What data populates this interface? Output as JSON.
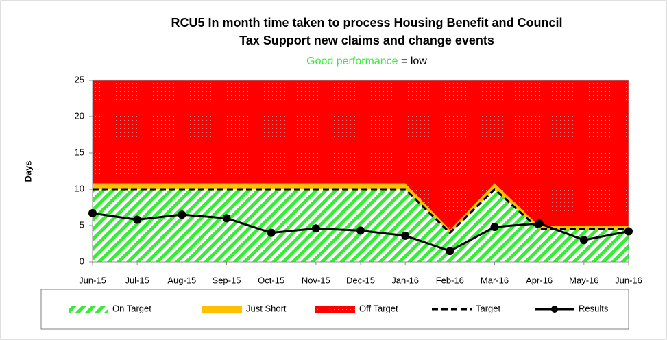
{
  "chart_data": {
    "type": "combo",
    "title": [
      "RCU5 In month time taken to process Housing Benefit and Council",
      "Tax Support new claims and change events"
    ],
    "subtitle": {
      "highlight": "Good performance",
      "rest": "= low"
    },
    "y_label": "Days",
    "categories": [
      "Jun-15",
      "Jul-15",
      "Aug-15",
      "Sep-15",
      "Oct-15",
      "Nov-15",
      "Dec-15",
      "Jan-16",
      "Feb-16",
      "Mar-16",
      "Apr-16",
      "May-16",
      "Jun-16"
    ],
    "ylim": [
      0,
      25
    ],
    "yticks": [
      0,
      5,
      10,
      15,
      20,
      25
    ],
    "series": [
      {
        "name": "On Target",
        "style": "hatched-area",
        "color": "#33ee33",
        "values": [
          10,
          10,
          10,
          10,
          10,
          10,
          10,
          10,
          4,
          10,
          4.5,
          4.5,
          4.5
        ]
      },
      {
        "name": "Just Short",
        "style": "area",
        "color": "#ffc000",
        "values": [
          0.8,
          0.8,
          0.8,
          0.8,
          0.8,
          0.8,
          0.8,
          0.8,
          0.4,
          0.8,
          0.4,
          0.4,
          0.4
        ]
      },
      {
        "name": "Off Target",
        "style": "area",
        "color": "#ff0000",
        "values": [
          14.2,
          14.2,
          14.2,
          14.2,
          14.2,
          14.2,
          14.2,
          14.2,
          20.6,
          14.2,
          20.1,
          20.1,
          20.1
        ]
      },
      {
        "name": "Target",
        "style": "dashed-line",
        "color": "#000000",
        "values": [
          10,
          10,
          10,
          10,
          10,
          10,
          10,
          10,
          4,
          10,
          4.5,
          4.5,
          4.5
        ]
      },
      {
        "name": "Results",
        "style": "marker-line",
        "color": "#000000",
        "values": [
          6.7,
          5.8,
          6.5,
          6.0,
          4.0,
          4.6,
          4.3,
          3.6,
          1.5,
          4.8,
          5.3,
          3.0,
          4.2
        ]
      }
    ],
    "legend": "bottom"
  }
}
